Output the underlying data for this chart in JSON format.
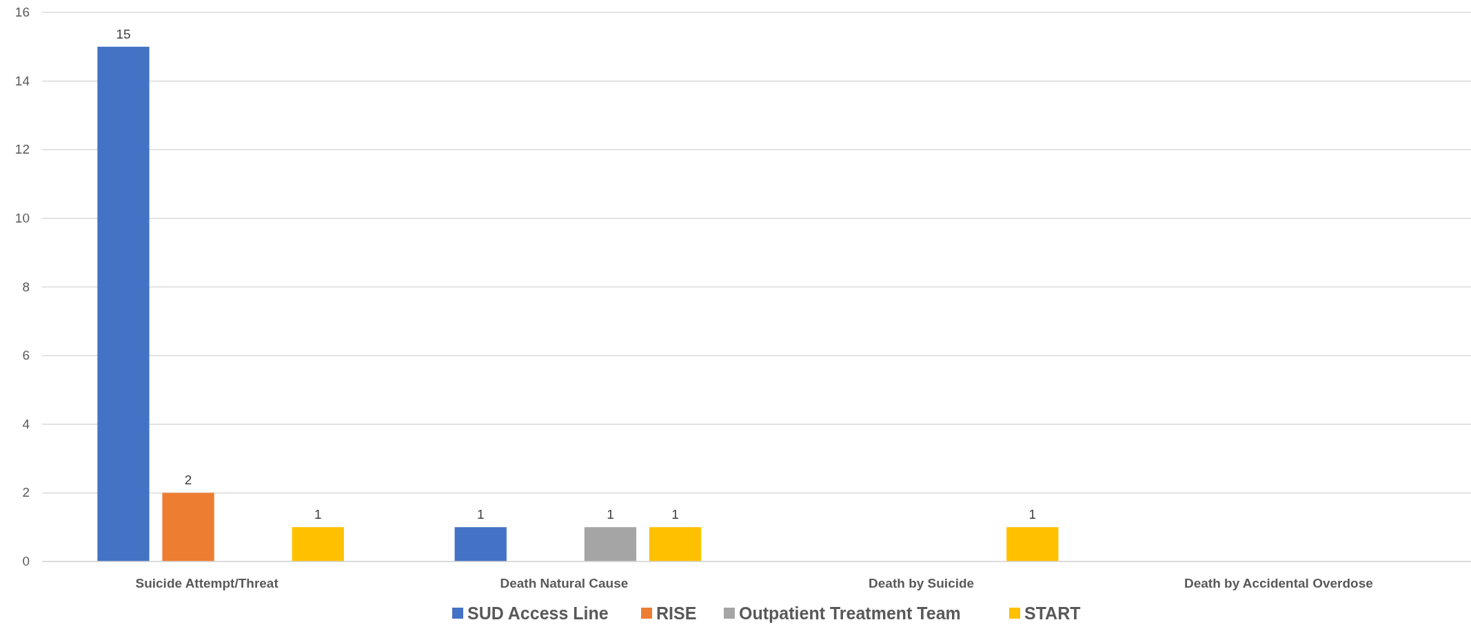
{
  "chart_data": {
    "type": "bar",
    "categories": [
      "Suicide Attempt/Threat",
      "Death Natural Cause",
      "Death by Suicide",
      "Death by Accidental Overdose"
    ],
    "series": [
      {
        "name": "SUD Access Line",
        "color": "#4472c4",
        "values": [
          15,
          1,
          null,
          null
        ]
      },
      {
        "name": "RISE",
        "color": "#ed7d31",
        "values": [
          2,
          null,
          null,
          null
        ]
      },
      {
        "name": "Outpatient Treatment Team",
        "color": "#a5a5a5",
        "values": [
          null,
          1,
          null,
          null
        ]
      },
      {
        "name": "START",
        "color": "#ffc000",
        "values": [
          1,
          1,
          1,
          null
        ]
      }
    ],
    "ylim": [
      0,
      16
    ],
    "yticks": [
      0,
      2,
      4,
      6,
      8,
      10,
      12,
      14,
      16
    ],
    "grid": "y",
    "data_labels": true,
    "legend": "bottom"
  }
}
